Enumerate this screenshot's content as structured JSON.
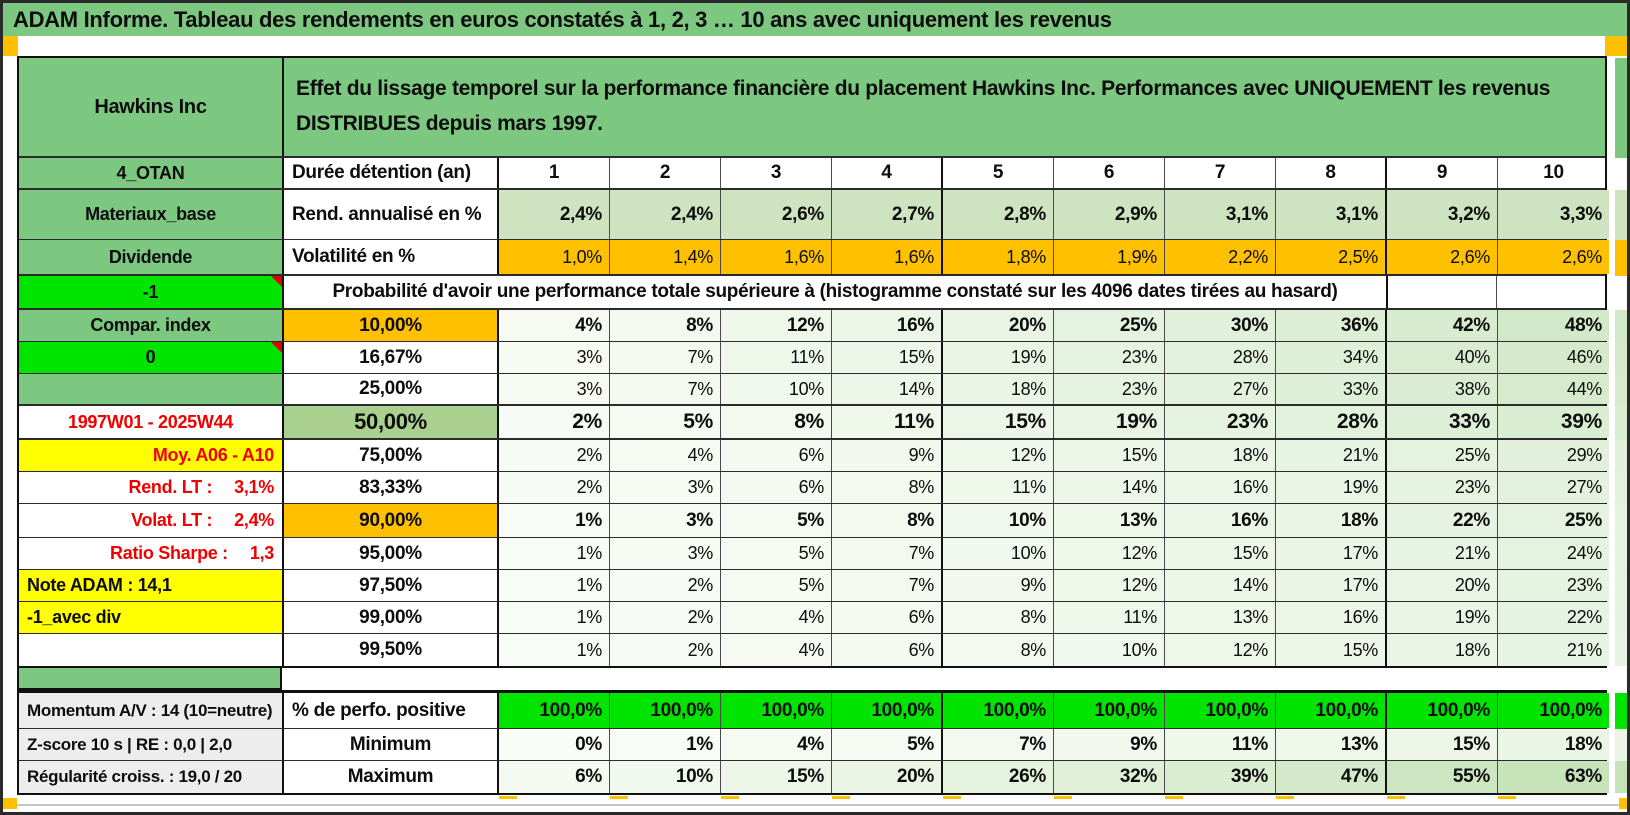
{
  "title": "ADAM Informe. Tableau des rendements en euros constatés à 1, 2, 3 … 10 ans avec uniquement les revenus",
  "header": {
    "entity": "Hawkins Inc",
    "description": "Effet du lissage temporel sur la performance financière du placement Hawkins Inc. Performances avec UNIQUEMENT les revenus DISTRIBUES depuis mars 1997."
  },
  "colors": {
    "mid_green": "#7dc881",
    "bright_green": "#00e400",
    "orange": "#ffc000",
    "yellow": "#ffff00",
    "green_50": "#a9d08e",
    "rend_green": "#cee4c1",
    "gray_label": "#ededed",
    "red_text": "#f00000",
    "scale_max_value": 63
  },
  "table": {
    "rows": [
      {
        "cls": "duree",
        "type": "years",
        "thick": true,
        "left": {
          "text": "4_OTAN",
          "bg": "mid"
        },
        "label": {
          "text": "Durée détention (an)"
        },
        "values": [
          "1",
          "2",
          "3",
          "4",
          "5",
          "6",
          "7",
          "8",
          "9",
          "10"
        ]
      },
      {
        "cls": "rend",
        "type": "cells",
        "thick": false,
        "left": {
          "text": "Materiaux_base",
          "bg": "mid"
        },
        "label": {
          "text": "Rend. annualisé en %"
        },
        "cellbg": "rendgreen",
        "bold": true,
        "values": [
          "2,4%",
          "2,4%",
          "2,6%",
          "2,7%",
          "2,8%",
          "2,9%",
          "3,1%",
          "3,1%",
          "3,2%",
          "3,3%"
        ]
      },
      {
        "cls": "volat",
        "type": "cells",
        "thick": true,
        "left": {
          "text": "Dividende",
          "bg": "mid"
        },
        "label": {
          "text": "Volatilité en %"
        },
        "cellbg": "orange",
        "bold": false,
        "values": [
          "1,0%",
          "1,4%",
          "1,6%",
          "1,6%",
          "1,8%",
          "1,9%",
          "2,2%",
          "2,5%",
          "2,6%",
          "2,6%"
        ]
      },
      {
        "cls": "probhdr",
        "type": "merged",
        "thick": true,
        "left": {
          "text": "-1",
          "bg": "bright",
          "tri": true
        },
        "text": "Probabilité d'avoir une performance totale supérieure à (histogramme constaté sur les 4096 dates tirées au hasard)"
      },
      {
        "cls": "pct",
        "type": "scale",
        "left": {
          "text": "Compar. index",
          "bg": "mid"
        },
        "label": {
          "text": "10,00%",
          "bg": "orange"
        },
        "bold": true,
        "values": [
          4,
          8,
          12,
          16,
          20,
          25,
          30,
          36,
          42,
          48
        ]
      },
      {
        "cls": "pct",
        "type": "scale",
        "left": {
          "text": "0",
          "bg": "bright",
          "tri": true
        },
        "label": {
          "text": "16,67%"
        },
        "bold": false,
        "values": [
          3,
          7,
          11,
          15,
          19,
          23,
          28,
          34,
          40,
          46
        ]
      },
      {
        "cls": "pct",
        "type": "scale",
        "thick": true,
        "left": {
          "text": "",
          "bg": "mid"
        },
        "label": {
          "text": "25,00%"
        },
        "bold": false,
        "values": [
          3,
          7,
          10,
          14,
          18,
          23,
          27,
          33,
          38,
          44
        ]
      },
      {
        "cls": "pct big",
        "type": "scale",
        "thick": true,
        "left": {
          "text": "1997W01 - 2025W44",
          "color": "red"
        },
        "label": {
          "text": "50,00%",
          "bg": "green50",
          "big": true
        },
        "bold": true,
        "xbold": true,
        "values": [
          2,
          5,
          8,
          11,
          15,
          19,
          23,
          28,
          33,
          39
        ]
      },
      {
        "cls": "pct",
        "type": "scale",
        "left": {
          "text": "Moy. A06 - A10",
          "bg": "yellow",
          "color": "red",
          "align": "right"
        },
        "label": {
          "text": "75,00%"
        },
        "bold": false,
        "values": [
          2,
          4,
          6,
          9,
          12,
          15,
          18,
          21,
          25,
          29
        ]
      },
      {
        "cls": "pct",
        "type": "scale",
        "left": {
          "parts": [
            "Rend. LT :",
            "3,1%"
          ],
          "color": "red",
          "align": "right"
        },
        "label": {
          "text": "83,33%"
        },
        "bold": false,
        "values": [
          2,
          3,
          6,
          8,
          11,
          14,
          16,
          19,
          23,
          27
        ]
      },
      {
        "cls": "pct big",
        "type": "scale",
        "left": {
          "parts": [
            "Volat. LT :",
            "2,4%"
          ],
          "color": "red",
          "align": "right"
        },
        "label": {
          "text": "90,00%",
          "bg": "orange"
        },
        "bold": true,
        "values": [
          1,
          3,
          5,
          8,
          10,
          13,
          16,
          18,
          22,
          25
        ]
      },
      {
        "cls": "pct",
        "type": "scale",
        "left": {
          "parts": [
            "Ratio Sharpe :",
            "1,3"
          ],
          "color": "red",
          "align": "right"
        },
        "label": {
          "text": "95,00%"
        },
        "bold": false,
        "values": [
          1,
          3,
          5,
          7,
          10,
          12,
          15,
          17,
          21,
          24
        ]
      },
      {
        "cls": "pct",
        "type": "scale",
        "left": {
          "text": "Note ADAM : 14,1",
          "bg": "yellow",
          "align": "left"
        },
        "label": {
          "text": "97,50%"
        },
        "bold": false,
        "values": [
          1,
          2,
          5,
          7,
          9,
          12,
          14,
          17,
          20,
          23
        ]
      },
      {
        "cls": "pct",
        "type": "scale",
        "left": {
          "text": "-1_avec div",
          "bg": "yellow",
          "align": "left"
        },
        "label": {
          "text": "99,00%"
        },
        "bold": false,
        "values": [
          1,
          2,
          4,
          6,
          8,
          11,
          13,
          16,
          19,
          22
        ]
      },
      {
        "cls": "pct",
        "type": "scale",
        "left": {
          "text": ""
        },
        "label": {
          "text": "99,50%"
        },
        "bold": false,
        "values": [
          1,
          2,
          4,
          6,
          8,
          10,
          12,
          15,
          18,
          21
        ]
      }
    ],
    "bottom_rows": [
      {
        "cls": "perfo",
        "type": "cells",
        "left": {
          "text": "Momentum A/V : 14 (10=neutre)",
          "bg": "gray",
          "align": "left",
          "small": true
        },
        "label": {
          "text": "% de perfo. positive"
        },
        "cellbg": "bright",
        "bold": true,
        "values": [
          "100,0%",
          "100,0%",
          "100,0%",
          "100,0%",
          "100,0%",
          "100,0%",
          "100,0%",
          "100,0%",
          "100,0%",
          "100,0%"
        ]
      },
      {
        "cls": "min",
        "type": "scale",
        "left": {
          "text": "Z-score 10 s | RE : 0,0 | 2,0",
          "bg": "gray",
          "align": "left",
          "small": true
        },
        "label": {
          "text": "Minimum"
        },
        "bold": true,
        "values": [
          0,
          1,
          4,
          5,
          7,
          9,
          11,
          13,
          15,
          18
        ]
      },
      {
        "cls": "max",
        "type": "scale",
        "left": {
          "text": "Régularité croiss. : 19,0 / 20",
          "bg": "gray",
          "align": "left",
          "small": true
        },
        "label": {
          "text": "Maximum"
        },
        "bold": true,
        "values": [
          6,
          10,
          15,
          20,
          26,
          32,
          39,
          47,
          55,
          63
        ]
      }
    ]
  }
}
